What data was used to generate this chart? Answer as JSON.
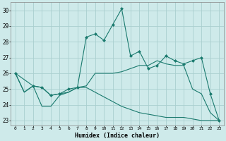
{
  "xlabel": "Humidex (Indice chaleur)",
  "bg_color": "#ceeaea",
  "line_color": "#1a7a6e",
  "grid_color": "#aacfcf",
  "xlim": [
    -0.5,
    23.5
  ],
  "ylim": [
    22.7,
    30.5
  ],
  "yticks": [
    23,
    24,
    25,
    26,
    27,
    28,
    29,
    30
  ],
  "xticks": [
    0,
    1,
    2,
    3,
    4,
    5,
    6,
    7,
    8,
    9,
    10,
    11,
    12,
    13,
    14,
    15,
    16,
    17,
    18,
    19,
    20,
    21,
    22,
    23
  ],
  "series": [
    {
      "x": [
        0,
        1,
        2,
        3,
        4,
        5,
        6,
        7,
        8,
        9,
        10,
        11,
        12,
        13,
        14,
        15,
        16,
        17,
        18,
        19,
        20,
        21,
        22,
        23
      ],
      "y": [
        26.0,
        24.8,
        25.2,
        25.1,
        24.6,
        24.7,
        24.8,
        25.1,
        25.1,
        24.8,
        24.5,
        24.2,
        23.9,
        23.7,
        23.5,
        23.4,
        23.3,
        23.2,
        23.2,
        23.2,
        23.1,
        23.0,
        23.0,
        23.0
      ],
      "markers": false
    },
    {
      "x": [
        0,
        1,
        2,
        3,
        4,
        5,
        6,
        7,
        8,
        9,
        10,
        11,
        12,
        13,
        14,
        15,
        16,
        17,
        18,
        19,
        20,
        21,
        22,
        23
      ],
      "y": [
        26.0,
        24.8,
        25.2,
        23.9,
        23.9,
        24.6,
        24.8,
        25.1,
        25.2,
        26.0,
        26.0,
        26.0,
        26.1,
        26.3,
        26.5,
        26.5,
        26.8,
        26.6,
        26.5,
        26.5,
        25.0,
        24.7,
        23.5,
        23.0
      ],
      "markers": false
    },
    {
      "x": [
        0,
        2,
        3,
        4,
        5,
        6,
        7,
        8,
        9,
        10,
        11,
        12,
        13,
        14,
        15,
        16,
        17,
        18,
        19,
        20,
        21,
        22,
        23
      ],
      "y": [
        26.0,
        25.2,
        25.1,
        24.6,
        24.7,
        25.0,
        25.1,
        28.3,
        28.5,
        28.1,
        29.1,
        30.1,
        27.1,
        27.4,
        26.3,
        26.5,
        27.1,
        26.8,
        26.6,
        26.8,
        27.0,
        24.7,
        23.0
      ],
      "markers": true
    }
  ]
}
